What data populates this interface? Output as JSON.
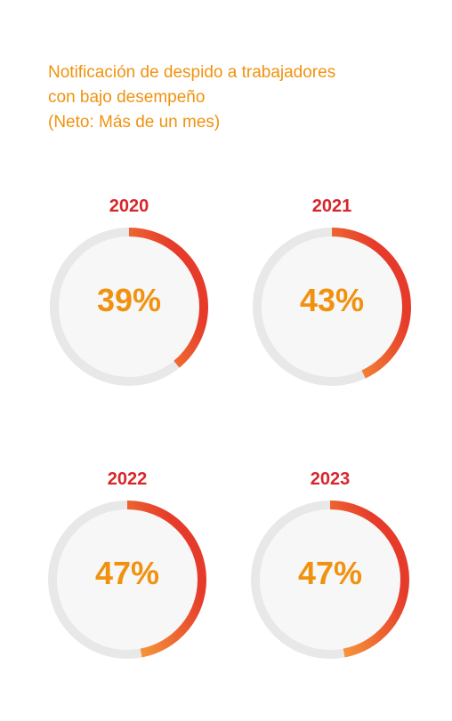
{
  "title": {
    "line1": "Notificación de despido a trabajadores",
    "line2": "con bajo desempeño",
    "line3": "(Neto: Más de un mes)"
  },
  "colors": {
    "title": "#f0920f",
    "year": "#d8262b",
    "value": "#f0920f",
    "track": "#e8e8e8",
    "inner": "#f7f7f7",
    "arc_start": "#e63b2a",
    "arc_end": "#f7a03c"
  },
  "chart_data": {
    "type": "pie",
    "title": "Notificación de despido a trabajadores con bajo desempeño (Neto: Más de un mes)",
    "categories": [
      "2020",
      "2021",
      "2022",
      "2023"
    ],
    "values": [
      39,
      43,
      47,
      47
    ],
    "unit": "%",
    "labels": [
      "39%",
      "43%",
      "47%",
      "47%"
    ]
  }
}
